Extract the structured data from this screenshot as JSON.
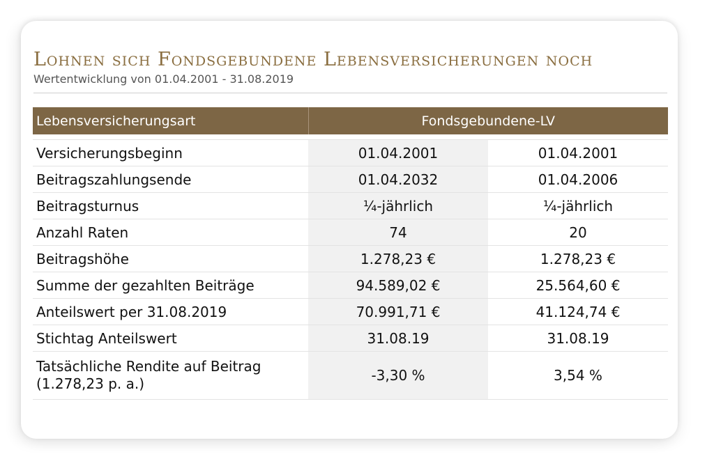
{
  "title": "Lohnen sich Fondsgebundene Lebensversicherungen noch",
  "subtitle": "Wertentwicklung von 01.04.2001 - 31.08.2019",
  "table": {
    "header": {
      "label": "Lebensversicherungsart",
      "group": "Fondsgebundene-LV"
    },
    "rows": [
      {
        "label": "Versicherungsbeginn",
        "v1": "01.04.2001",
        "v2": "01.04.2001"
      },
      {
        "label": "Beitragszahlungsende",
        "v1": "01.04.2032",
        "v2": "01.04.2006"
      },
      {
        "label": "Beitragsturnus",
        "v1": "¼-jährlich",
        "v2": "¼-jährlich"
      },
      {
        "label": "Anzahl Raten",
        "v1": "74",
        "v2": "20"
      },
      {
        "label": "Beitragshöhe",
        "v1": "1.278,23 €",
        "v2": "1.278,23 €"
      },
      {
        "label": "Summe der gezahlten Beiträge",
        "v1": "94.589,02 €",
        "v2": "25.564,60 €"
      },
      {
        "label": "Anteilswert per 31.08.2019",
        "v1": "70.991,71 €",
        "v2": "41.124,74 €"
      },
      {
        "label": "Stichtag Anteilswert",
        "v1": "31.08.19",
        "v2": "31.08.19"
      },
      {
        "label": "Tatsächliche Rendite auf Beitrag",
        "label2": "(1.278,23 p. a.)",
        "v1": "-3,30 %",
        "v2": "3,54 %"
      }
    ]
  }
}
